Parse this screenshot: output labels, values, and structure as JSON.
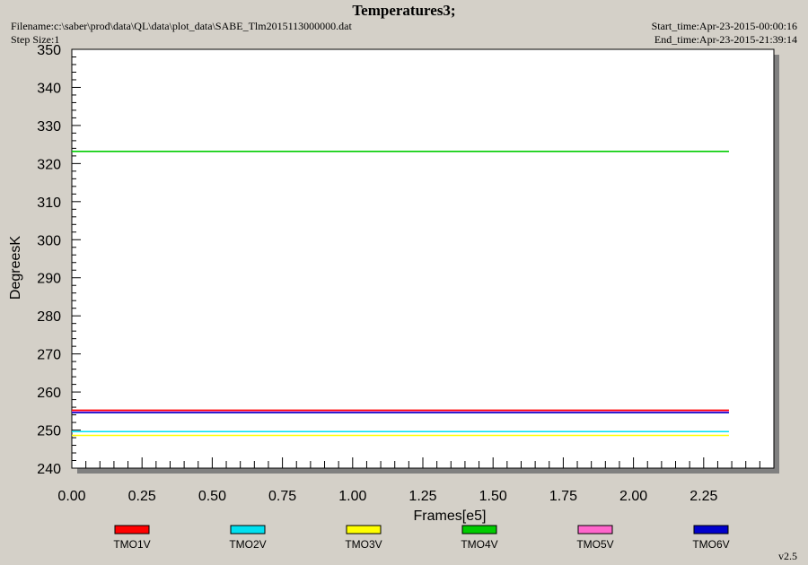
{
  "header": {
    "title": "Temperatures3;",
    "filename": "Filename:c:\\saber\\prod\\data\\QL\\data\\plot_data\\SABE_Tlm2015113000000.dat",
    "step_size": "Step Size:1",
    "start_time": "Start_time:Apr-23-2015-00:00:16",
    "end_time": "End_time:Apr-23-2015-21:39:14"
  },
  "footer": {
    "version": "v2.5"
  },
  "chart_data": {
    "type": "line",
    "title": "Temperatures3;",
    "xlabel": "Frames[e5]",
    "ylabel": "DegreesK",
    "xlim": [
      0.0,
      2.5
    ],
    "ylim": [
      240,
      350
    ],
    "x_ticks": [
      "0.00",
      "0.25",
      "0.50",
      "0.75",
      "1.00",
      "1.25",
      "1.50",
      "1.75",
      "2.00",
      "2.25"
    ],
    "y_ticks": [
      "240",
      "250",
      "260",
      "270",
      "280",
      "290",
      "300",
      "310",
      "320",
      "330",
      "340",
      "350"
    ],
    "grid": false,
    "legend_position": "bottom",
    "x": [
      0.0,
      2.34
    ],
    "series": [
      {
        "name": "TMO1V",
        "color": "#ff0000",
        "values": [
          255.2,
          255.2
        ]
      },
      {
        "name": "TMO2V",
        "color": "#00e0f0",
        "values": [
          249.6,
          249.6
        ]
      },
      {
        "name": "TMO3V",
        "color": "#ffff00",
        "values": [
          248.6,
          248.6
        ]
      },
      {
        "name": "TMO4V",
        "color": "#00cc00",
        "values": [
          323.2,
          323.2
        ]
      },
      {
        "name": "TMO5V",
        "color": "#ff66cc",
        "values": [
          254.8,
          254.8
        ]
      },
      {
        "name": "TMO6V",
        "color": "#0000cc",
        "values": [
          254.6,
          254.6
        ]
      }
    ]
  }
}
